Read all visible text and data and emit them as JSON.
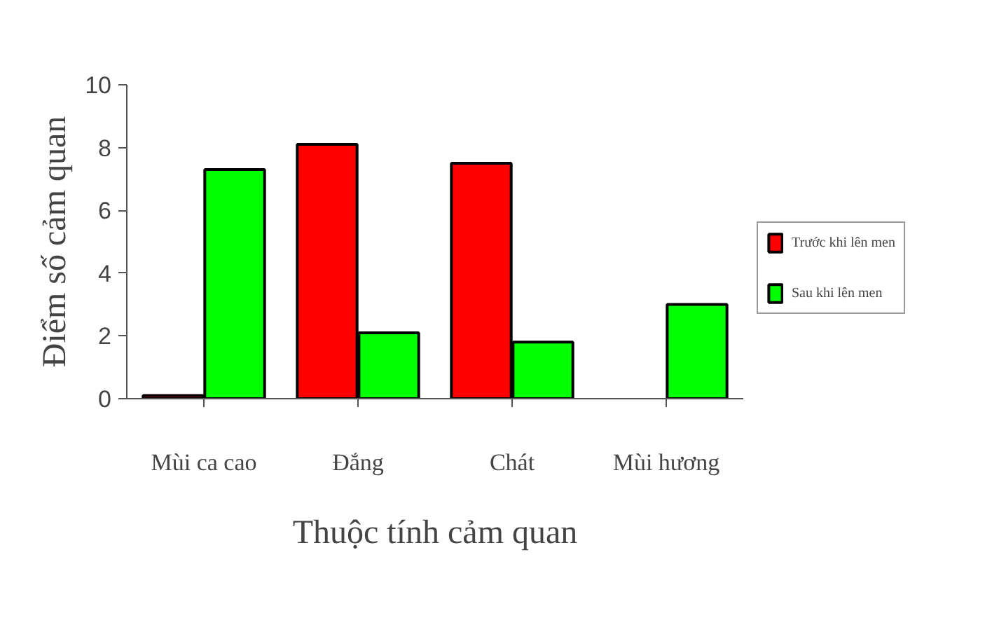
{
  "chart_data": {
    "type": "bar",
    "xlabel": "Thuộc tính cảm quan",
    "ylabel": "Điểm số cảm quan",
    "categories": [
      "Mùi ca cao",
      "Đắng",
      "Chát",
      "Mùi hương"
    ],
    "series": [
      {
        "name": "Trước khi lên men",
        "color": "#ff0000",
        "values": [
          0.1,
          8.1,
          7.5,
          null
        ]
      },
      {
        "name": "Sau khi lên men",
        "color": "#00ff00",
        "values": [
          7.3,
          2.1,
          1.8,
          3.0
        ]
      }
    ],
    "ylim": [
      0,
      10
    ],
    "yticks": [
      0,
      2,
      4,
      6,
      8,
      10
    ],
    "grid": false,
    "legend": "right"
  }
}
